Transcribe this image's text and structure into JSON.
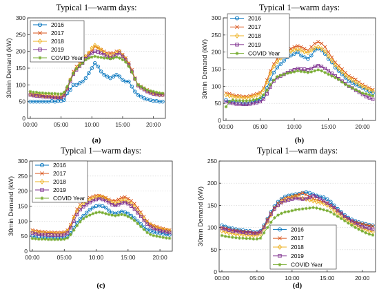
{
  "colors": {
    "2016": "#0072BD",
    "2017": "#D95319",
    "2018": "#EDB120",
    "2019": "#7E2F8E",
    "COVID Year": "#77AC30",
    "axis": "#262626",
    "grid": "#d0d0d0"
  },
  "chart_data": [
    {
      "type": "line",
      "title": "Typical 1—warm days:",
      "panel_label": "(a)",
      "xlabel": "",
      "ylabel": "30min Demand (kW)",
      "xticklabels": [
        "00:00",
        "05:00",
        "10:00",
        "15:00",
        "20:00"
      ],
      "ylim": [
        0,
        300
      ],
      "yticks": [
        0,
        50,
        100,
        150,
        200,
        250,
        300
      ],
      "legend": "top-left",
      "series": [
        {
          "name": "2016",
          "marker": "circle",
          "values": [
            50,
            50,
            50,
            50,
            50,
            50,
            50,
            52,
            50,
            52,
            52,
            55,
            75,
            85,
            100,
            100,
            105,
            110,
            120,
            135,
            150,
            165,
            155,
            140,
            130,
            125,
            120,
            125,
            130,
            125,
            115,
            110,
            110,
            95,
            80,
            70,
            65,
            60,
            57,
            55,
            52,
            52,
            50,
            50
          ]
        },
        {
          "name": "2017",
          "marker": "x",
          "values": [
            75,
            70,
            70,
            68,
            67,
            65,
            65,
            65,
            63,
            62,
            62,
            70,
            90,
            115,
            140,
            155,
            165,
            175,
            185,
            195,
            200,
            215,
            210,
            205,
            200,
            195,
            195,
            195,
            200,
            200,
            190,
            180,
            165,
            145,
            120,
            100,
            95,
            90,
            85,
            80,
            75,
            73,
            72,
            72
          ]
        },
        {
          "name": "2018",
          "marker": "diamond",
          "values": [
            72,
            70,
            70,
            68,
            68,
            67,
            67,
            67,
            66,
            65,
            65,
            72,
            92,
            115,
            135,
            150,
            160,
            170,
            185,
            195,
            210,
            218,
            212,
            205,
            195,
            190,
            185,
            190,
            195,
            200,
            188,
            178,
            162,
            140,
            118,
            98,
            92,
            88,
            82,
            78,
            75,
            73,
            70,
            70
          ]
        },
        {
          "name": "2019",
          "marker": "square",
          "values": [
            70,
            68,
            67,
            66,
            65,
            64,
            64,
            63,
            62,
            62,
            62,
            68,
            88,
            110,
            132,
            145,
            155,
            165,
            178,
            188,
            195,
            200,
            198,
            195,
            190,
            185,
            180,
            185,
            190,
            195,
            185,
            175,
            160,
            140,
            118,
            98,
            92,
            86,
            80,
            76,
            73,
            71,
            70,
            70
          ]
        },
        {
          "name": "COVID Year",
          "marker": "star",
          "values": [
            80,
            78,
            78,
            76,
            76,
            75,
            75,
            74,
            74,
            73,
            73,
            78,
            95,
            115,
            135,
            148,
            158,
            165,
            175,
            180,
            183,
            185,
            183,
            182,
            180,
            180,
            178,
            180,
            183,
            180,
            175,
            168,
            155,
            138,
            118,
            100,
            95,
            90,
            85,
            82,
            80,
            78,
            76,
            75
          ]
        }
      ]
    },
    {
      "type": "line",
      "title": "Typical 1—warm days:",
      "panel_label": "(b)",
      "xlabel": "",
      "ylabel": "30min Demand (kW)",
      "xticklabels": [
        "00:00",
        "05:00",
        "10:00",
        "15:00",
        "20:00"
      ],
      "ylim": [
        0,
        300
      ],
      "yticks": [
        0,
        50,
        100,
        150,
        200,
        250,
        300
      ],
      "legend": "top-left",
      "series": [
        {
          "name": "2016",
          "marker": "circle",
          "values": [
            60,
            55,
            55,
            52,
            52,
            50,
            50,
            52,
            55,
            58,
            62,
            72,
            95,
            120,
            140,
            155,
            165,
            175,
            185,
            190,
            195,
            200,
            190,
            185,
            180,
            190,
            205,
            210,
            205,
            195,
            180,
            170,
            155,
            145,
            135,
            125,
            115,
            110,
            105,
            100,
            95,
            90,
            85,
            80
          ]
        },
        {
          "name": "2017",
          "marker": "x",
          "values": [
            80,
            78,
            75,
            72,
            72,
            70,
            70,
            72,
            75,
            78,
            82,
            95,
            118,
            145,
            165,
            180,
            190,
            198,
            205,
            210,
            215,
            218,
            215,
            210,
            205,
            215,
            225,
            230,
            225,
            215,
            200,
            185,
            170,
            160,
            150,
            140,
            130,
            125,
            120,
            112,
            105,
            100,
            95,
            90
          ]
        },
        {
          "name": "2018",
          "marker": "diamond",
          "values": [
            75,
            72,
            70,
            68,
            68,
            66,
            66,
            68,
            70,
            74,
            78,
            90,
            112,
            138,
            158,
            172,
            182,
            190,
            198,
            202,
            206,
            208,
            205,
            200,
            198,
            205,
            212,
            215,
            210,
            202,
            188,
            175,
            162,
            152,
            142,
            132,
            124,
            118,
            112,
            106,
            100,
            95,
            90,
            86
          ]
        },
        {
          "name": "2019",
          "marker": "square",
          "values": [
            55,
            52,
            50,
            48,
            48,
            47,
            47,
            48,
            50,
            52,
            55,
            62,
            78,
            98,
            115,
            125,
            130,
            135,
            140,
            145,
            148,
            152,
            150,
            150,
            148,
            152,
            158,
            160,
            158,
            152,
            145,
            138,
            130,
            122,
            115,
            108,
            100,
            95,
            88,
            82,
            76,
            70,
            66,
            62
          ]
        },
        {
          "name": "COVID Year",
          "marker": "star",
          "values": [
            40,
            55,
            60,
            58,
            58,
            57,
            57,
            58,
            60,
            62,
            66,
            75,
            88,
            105,
            118,
            128,
            132,
            135,
            138,
            140,
            142,
            145,
            143,
            142,
            140,
            142,
            145,
            148,
            145,
            140,
            135,
            130,
            125,
            120,
            112,
            105,
            100,
            95,
            90,
            85,
            80,
            78,
            75,
            72
          ]
        }
      ]
    },
    {
      "type": "line",
      "title": "Typical 1—warm days:",
      "panel_label": "(c)",
      "xlabel": "",
      "ylabel": "30min Demand (kW)",
      "xticklabels": [
        "00:00",
        "05:00",
        "10:00",
        "15:00",
        "20:00"
      ],
      "ylim": [
        0,
        300
      ],
      "yticks": [
        0,
        50,
        100,
        150,
        200,
        250,
        300
      ],
      "legend": "top-left",
      "series": [
        {
          "name": "2016",
          "marker": "circle",
          "values": [
            50,
            48,
            47,
            46,
            45,
            45,
            45,
            44,
            44,
            44,
            45,
            48,
            60,
            78,
            95,
            108,
            118,
            128,
            138,
            145,
            150,
            152,
            150,
            145,
            135,
            128,
            125,
            128,
            132,
            130,
            125,
            118,
            110,
            100,
            90,
            80,
            72,
            68,
            64,
            62,
            60,
            58,
            56,
            55
          ]
        },
        {
          "name": "2017",
          "marker": "x",
          "values": [
            70,
            68,
            66,
            65,
            64,
            63,
            63,
            62,
            62,
            62,
            64,
            70,
            88,
            115,
            140,
            155,
            165,
            172,
            178,
            182,
            185,
            185,
            182,
            178,
            172,
            168,
            168,
            172,
            178,
            180,
            175,
            168,
            158,
            145,
            130,
            115,
            100,
            90,
            85,
            82,
            78,
            75,
            72,
            70
          ]
        },
        {
          "name": "2018",
          "marker": "diamond",
          "values": [
            65,
            63,
            62,
            60,
            60,
            59,
            59,
            58,
            58,
            58,
            60,
            66,
            84,
            110,
            132,
            148,
            158,
            165,
            172,
            176,
            180,
            182,
            180,
            175,
            168,
            162,
            160,
            162,
            168,
            170,
            165,
            158,
            148,
            135,
            122,
            108,
            96,
            88,
            82,
            78,
            74,
            72,
            70,
            68
          ]
        },
        {
          "name": "2019",
          "marker": "square",
          "values": [
            60,
            58,
            56,
            55,
            55,
            54,
            54,
            53,
            53,
            53,
            55,
            60,
            78,
            100,
            122,
            138,
            148,
            155,
            162,
            168,
            172,
            175,
            172,
            168,
            162,
            155,
            152,
            155,
            160,
            162,
            158,
            150,
            140,
            128,
            116,
            102,
            90,
            82,
            76,
            72,
            68,
            66,
            64,
            62
          ]
        },
        {
          "name": "COVID Year",
          "marker": "star",
          "values": [
            42,
            41,
            40,
            40,
            40,
            39,
            39,
            39,
            39,
            39,
            40,
            44,
            55,
            70,
            85,
            98,
            108,
            115,
            120,
            125,
            128,
            130,
            128,
            125,
            122,
            120,
            118,
            120,
            122,
            120,
            115,
            110,
            102,
            92,
            82,
            72,
            62,
            56,
            52,
            50,
            48,
            46,
            44,
            43
          ]
        }
      ]
    },
    {
      "type": "line",
      "title": "Typical 1—warm days:",
      "panel_label": "(d)",
      "xlabel": "",
      "ylabel": "30min Demand (kW)",
      "xticklabels": [
        "00:00",
        "05:00",
        "10:00",
        "15:00",
        "20:00"
      ],
      "ylim": [
        0,
        250
      ],
      "yticks": [
        0,
        50,
        100,
        150,
        200,
        250
      ],
      "legend": "bottom-center",
      "series": [
        {
          "name": "2016",
          "marker": "circle",
          "values": [
            105,
            102,
            100,
            98,
            96,
            95,
            94,
            92,
            92,
            90,
            90,
            92,
            105,
            120,
            135,
            148,
            158,
            165,
            170,
            172,
            174,
            175,
            176,
            178,
            180,
            178,
            175,
            172,
            170,
            168,
            164,
            158,
            150,
            142,
            135,
            128,
            122,
            118,
            115,
            112,
            110,
            108,
            106,
            105
          ]
        },
        {
          "name": "2017",
          "marker": "x",
          "values": [
            100,
            98,
            96,
            94,
            93,
            92,
            91,
            90,
            90,
            88,
            88,
            90,
            102,
            118,
            132,
            145,
            155,
            162,
            166,
            168,
            170,
            172,
            175,
            178,
            174,
            170,
            165,
            162,
            160,
            158,
            155,
            150,
            145,
            138,
            132,
            125,
            120,
            115,
            112,
            110,
            108,
            106,
            104,
            103
          ]
        },
        {
          "name": "2018",
          "marker": "diamond",
          "values": [
            92,
            90,
            88,
            86,
            85,
            84,
            84,
            83,
            82,
            82,
            82,
            85,
            98,
            112,
            128,
            142,
            150,
            158,
            162,
            165,
            168,
            170,
            168,
            166,
            164,
            162,
            160,
            158,
            156,
            154,
            150,
            145,
            138,
            132,
            126,
            120,
            115,
            110,
            106,
            102,
            98,
            95,
            92,
            90
          ]
        },
        {
          "name": "2019",
          "marker": "square",
          "values": [
            98,
            96,
            94,
            92,
            91,
            90,
            89,
            88,
            88,
            87,
            87,
            90,
            100,
            115,
            130,
            142,
            150,
            156,
            160,
            162,
            164,
            166,
            165,
            164,
            165,
            168,
            172,
            170,
            165,
            160,
            155,
            150,
            145,
            138,
            132,
            125,
            120,
            115,
            110,
            106,
            102,
            100,
            98,
            96
          ]
        },
        {
          "name": "COVID Year",
          "marker": "star",
          "values": [
            82,
            80,
            79,
            78,
            77,
            76,
            76,
            75,
            75,
            74,
            74,
            76,
            88,
            100,
            112,
            122,
            128,
            132,
            135,
            136,
            138,
            140,
            141,
            142,
            143,
            144,
            145,
            144,
            142,
            140,
            138,
            135,
            130,
            125,
            120,
            115,
            110,
            105,
            100,
            96,
            92,
            88,
            85,
            83
          ]
        }
      ]
    }
  ]
}
